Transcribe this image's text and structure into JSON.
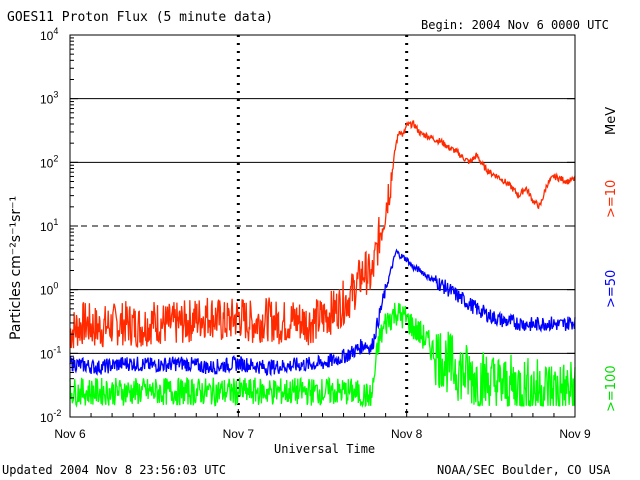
{
  "header": {
    "title": "GOES11 Proton Flux (5 minute data)",
    "begin": "Begin: 2004 Nov 6 0000 UTC"
  },
  "footer": {
    "updated": "Updated 2004 Nov  8 23:56:03 UTC",
    "credit": "NOAA/SEC Boulder, CO USA"
  },
  "colors": {
    "red": "#ff2a00",
    "blue": "#0000ff",
    "green": "#00ff00",
    "grid": "#000000"
  },
  "chart_data": {
    "type": "line",
    "title": "GOES11 Proton Flux (5 minute data)",
    "xlabel": "Universal Time",
    "ylabel": "Particles cm⁻²s⁻¹sr⁻¹",
    "ylog": true,
    "ylim": [
      0.01,
      10000
    ],
    "xlim": [
      0,
      72
    ],
    "x_unit": "hours since 2004 Nov 6 0000 UTC",
    "x_ticks": [
      {
        "value": 0,
        "label": "Nov 6"
      },
      {
        "value": 24,
        "label": "Nov 7"
      },
      {
        "value": 48,
        "label": "Nov 8"
      },
      {
        "value": 72,
        "label": "Nov 9"
      }
    ],
    "y_ticks": [
      {
        "value": 10000,
        "base": "10",
        "exp": "4"
      },
      {
        "value": 1000,
        "base": "10",
        "exp": "3"
      },
      {
        "value": 100,
        "base": "10",
        "exp": "2"
      },
      {
        "value": 10,
        "base": "10",
        "exp": "1"
      },
      {
        "value": 1,
        "base": "10",
        "exp": "0"
      },
      {
        "value": 0.1,
        "base": "10",
        "exp": "-1"
      },
      {
        "value": 0.01,
        "base": "10",
        "exp": "-2"
      }
    ],
    "series": [
      {
        "name": ">=10 MeV",
        "label": ">=10",
        "unit": "MeV",
        "color": "#ff2a00",
        "x": [
          0,
          2,
          4,
          6,
          8,
          10,
          12,
          14,
          16,
          18,
          20,
          22,
          24,
          26,
          28,
          30,
          32,
          34,
          36,
          38,
          40,
          42,
          43,
          44,
          45,
          46,
          46.5,
          47,
          47.5,
          48,
          49,
          50,
          51,
          52,
          53,
          54,
          55,
          56,
          57,
          58,
          59,
          60,
          61,
          62,
          63,
          64,
          65,
          66,
          67,
          68,
          69,
          70,
          71,
          72
        ],
        "values": [
          0.22,
          0.3,
          0.25,
          0.28,
          0.3,
          0.26,
          0.32,
          0.28,
          0.3,
          0.35,
          0.4,
          0.3,
          0.38,
          0.3,
          0.35,
          0.3,
          0.34,
          0.3,
          0.36,
          0.5,
          0.8,
          2.0,
          1.5,
          6.0,
          20,
          80,
          200,
          320,
          260,
          380,
          400,
          280,
          260,
          230,
          210,
          170,
          150,
          120,
          100,
          130,
          85,
          68,
          60,
          50,
          40,
          30,
          40,
          25,
          20,
          45,
          60,
          55,
          50,
          55
        ]
      },
      {
        "name": ">=50 MeV",
        "label": ">=50",
        "unit": "MeV",
        "color": "#0000ff",
        "x": [
          0,
          4,
          8,
          12,
          16,
          20,
          24,
          28,
          32,
          36,
          38,
          40,
          42,
          43,
          44,
          45,
          46,
          46.5,
          47,
          48,
          49,
          50,
          51,
          52,
          54,
          56,
          58,
          60,
          62,
          64,
          66,
          68,
          70,
          72
        ],
        "values": [
          0.07,
          0.06,
          0.07,
          0.065,
          0.07,
          0.06,
          0.07,
          0.06,
          0.065,
          0.07,
          0.08,
          0.1,
          0.14,
          0.12,
          0.35,
          1.0,
          2.5,
          4.0,
          3.5,
          3.0,
          2.2,
          2.0,
          1.6,
          1.4,
          1.0,
          0.7,
          0.5,
          0.38,
          0.32,
          0.3,
          0.28,
          0.3,
          0.28,
          0.32
        ]
      },
      {
        "name": ">=100 MeV",
        "label": ">=100",
        "unit": "MeV",
        "color": "#00ff00",
        "x": [
          0,
          4,
          8,
          12,
          16,
          20,
          24,
          28,
          32,
          36,
          40,
          43,
          44,
          45,
          46,
          46.5,
          47,
          48,
          49,
          50,
          51,
          52,
          54,
          56,
          58,
          60,
          62,
          64,
          66,
          68,
          70,
          72
        ],
        "values": [
          0.025,
          0.025,
          0.025,
          0.025,
          0.025,
          0.025,
          0.025,
          0.025,
          0.025,
          0.025,
          0.025,
          0.02,
          0.15,
          0.3,
          0.4,
          0.45,
          0.4,
          0.35,
          0.25,
          0.2,
          0.15,
          0.1,
          0.07,
          0.05,
          0.04,
          0.035,
          0.03,
          0.03,
          0.028,
          0.027,
          0.026,
          0.025
        ]
      }
    ]
  }
}
